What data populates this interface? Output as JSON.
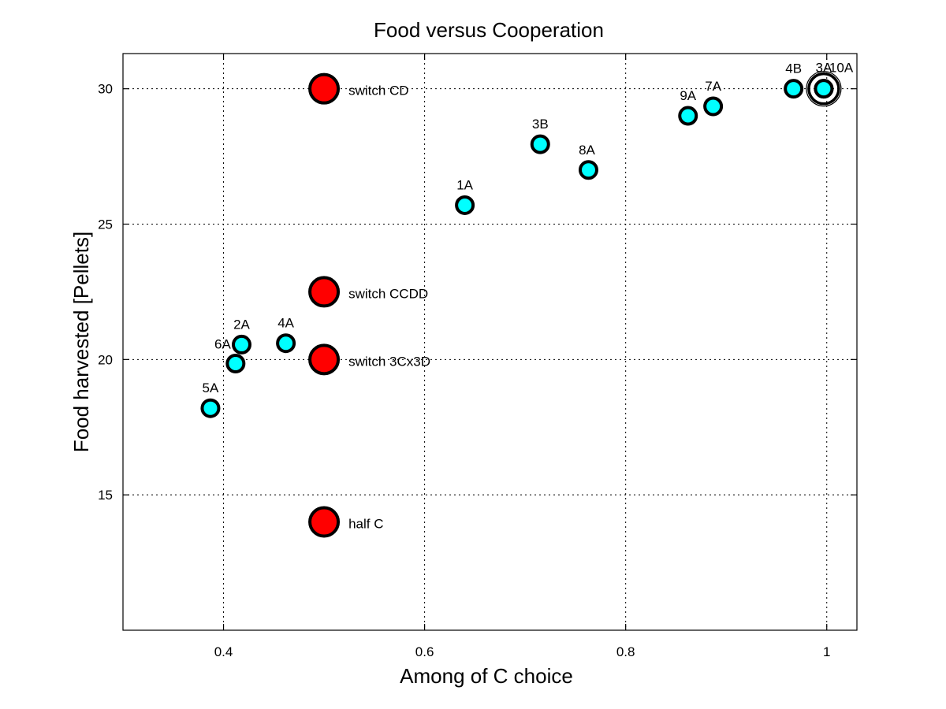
{
  "chart_data": {
    "type": "scatter",
    "title": "Food versus Cooperation",
    "xlabel": "Among of C choice",
    "ylabel": "Food harvested [Pellets]",
    "xlim": [
      0.3,
      1.03
    ],
    "ylim": [
      10,
      31.3
    ],
    "xticks": [
      0.4,
      0.6,
      0.8,
      1
    ],
    "xtick_labels": [
      "0.4",
      "0.6",
      "0.8",
      "1"
    ],
    "yticks": [
      15,
      20,
      25,
      30
    ],
    "ytick_labels": [
      "15",
      "20",
      "25",
      "30"
    ],
    "grid": true,
    "series": [
      {
        "color": "#00ffff",
        "marker": "circle-small",
        "points": [
          {
            "label": "1A",
            "x": 0.64,
            "y": 25.7
          },
          {
            "label": "2A",
            "x": 0.418,
            "y": 20.55
          },
          {
            "label": "3B",
            "x": 0.715,
            "y": 27.95
          },
          {
            "label": "4A",
            "x": 0.462,
            "y": 20.6
          },
          {
            "label": "4B",
            "x": 0.967,
            "y": 30.0
          },
          {
            "label": "5A",
            "x": 0.387,
            "y": 18.2
          },
          {
            "label": "6A",
            "x": 0.412,
            "y": 19.85
          },
          {
            "label": "7A",
            "x": 0.887,
            "y": 29.35
          },
          {
            "label": "8A",
            "x": 0.763,
            "y": 27.0
          },
          {
            "label": "9A",
            "x": 0.862,
            "y": 29.0
          },
          {
            "label": "3A",
            "x": 0.997,
            "y": 30.0
          },
          {
            "label": "10A",
            "x": 0.997,
            "y": 30.0
          }
        ]
      },
      {
        "color": "#ff0000",
        "marker": "circle-large",
        "points": [
          {
            "label": "switch CD",
            "x": 0.5,
            "y": 30.0
          },
          {
            "label": "switch CCDD",
            "x": 0.5,
            "y": 22.5
          },
          {
            "label": "switch 3Cx3D",
            "x": 0.5,
            "y": 20.0
          },
          {
            "label": "half C",
            "x": 0.5,
            "y": 14.0
          }
        ]
      }
    ]
  }
}
